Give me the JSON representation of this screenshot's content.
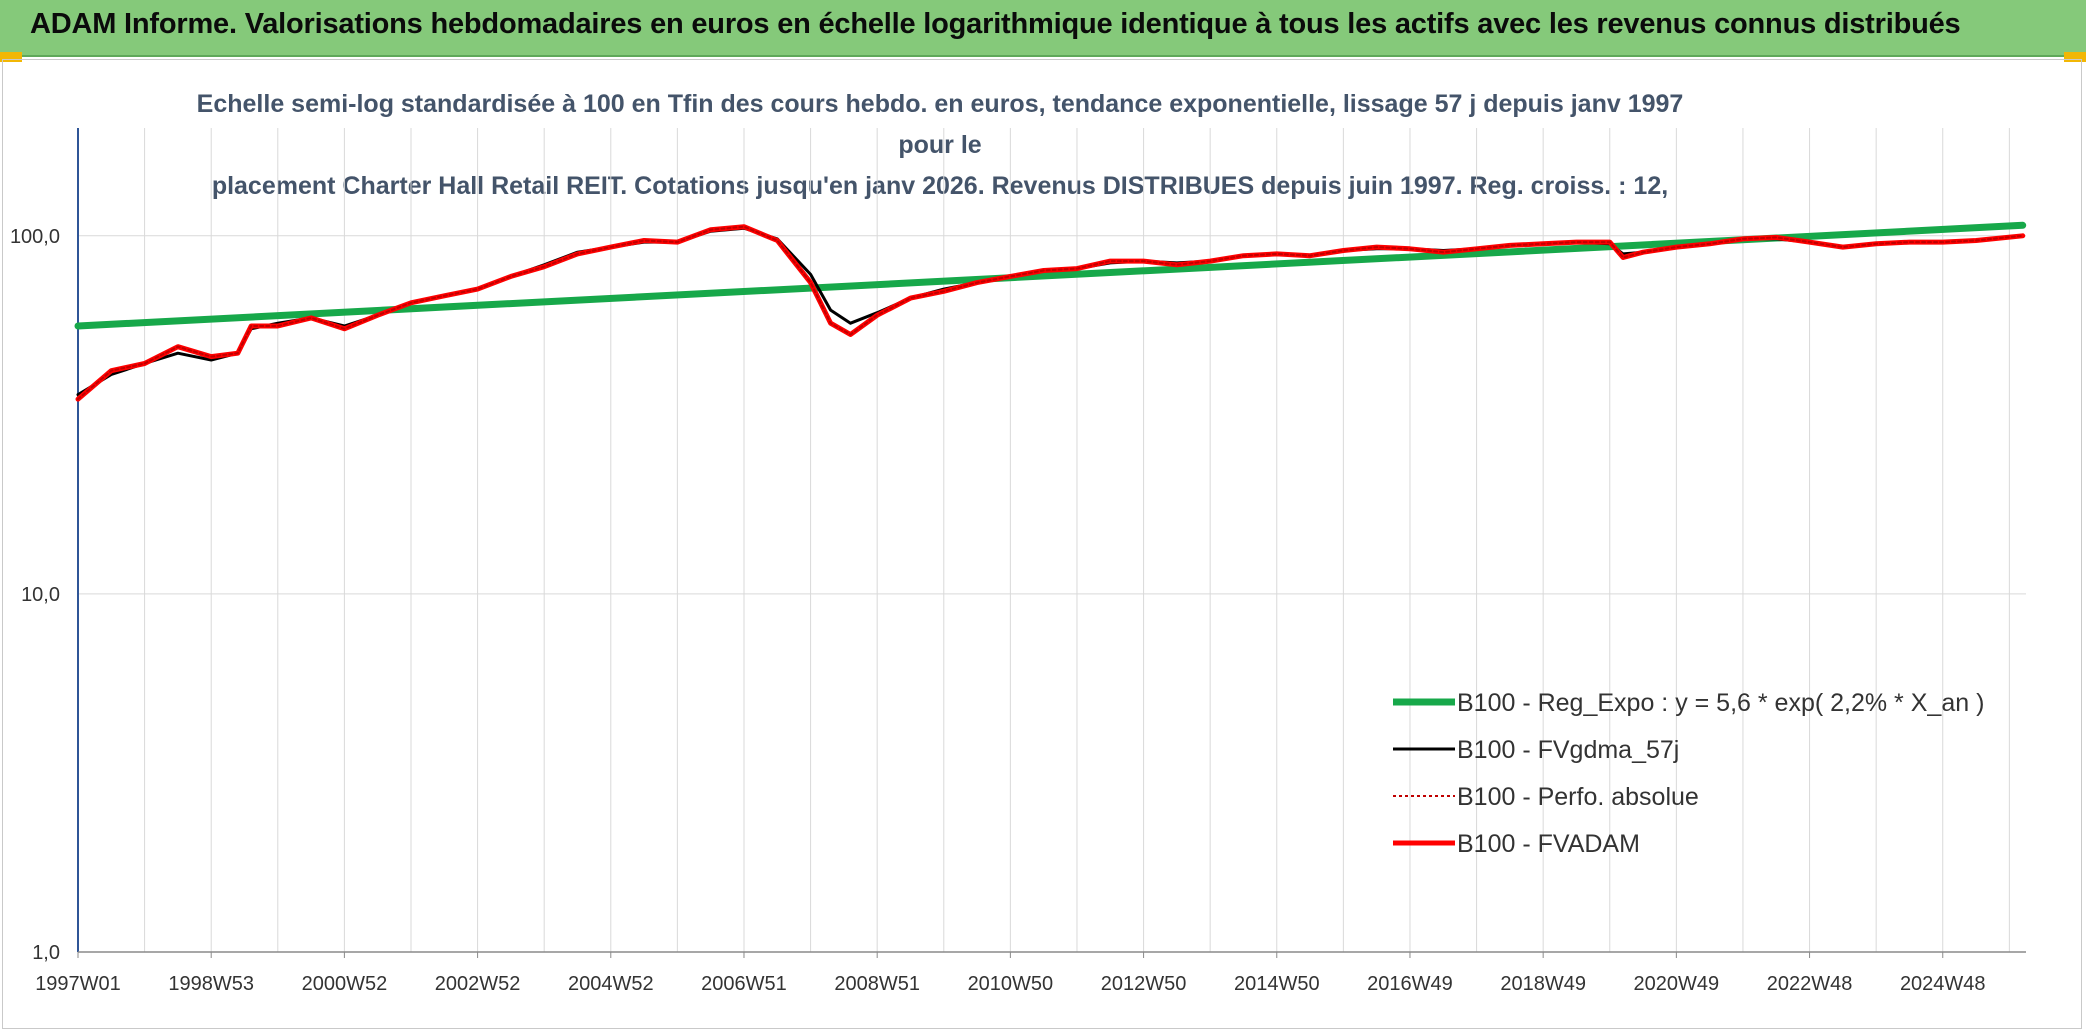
{
  "header": {
    "title": "ADAM Informe. Valorisations hebdomadaires en euros en échelle logarithmique identique à tous les actifs avec les revenus connus distribués"
  },
  "colors": {
    "banner": "#85c97a",
    "trend": "#17a84a",
    "fvadam": "#ff0000",
    "smooth": "#000000",
    "perfo": "#c00000",
    "grid": "#d9d9d9",
    "title_text": "#44546a"
  },
  "chart_data": {
    "type": "line",
    "title_line1": "Echelle semi-log standardisée à 100 en Tfin des cours hebdo. en euros, tendance exponentielle, lissage 57 j depuis janv 1997 pour le",
    "title_line2": "placement Charter Hall Retail REIT. Cotations jusqu'en janv 2026. Revenus DISTRIBUES depuis juin 1997. Reg. croiss. : 12,",
    "y_scale": "log",
    "ylim": [
      1,
      200
    ],
    "y_ticks": [
      {
        "value": 1,
        "label": "1,0"
      },
      {
        "value": 10,
        "label": "10,0"
      },
      {
        "value": 100,
        "label": "100,0"
      }
    ],
    "xlim": [
      1997.0,
      2026.25
    ],
    "x_ticks": [
      {
        "value": 1997.0,
        "label": "1997W01"
      },
      {
        "value": 1999.0,
        "label": "1998W53"
      },
      {
        "value": 2001.0,
        "label": "2000W52"
      },
      {
        "value": 2003.0,
        "label": "2002W52"
      },
      {
        "value": 2005.0,
        "label": "2004W52"
      },
      {
        "value": 2007.0,
        "label": "2006W51"
      },
      {
        "value": 2009.0,
        "label": "2008W51"
      },
      {
        "value": 2011.0,
        "label": "2010W50"
      },
      {
        "value": 2013.0,
        "label": "2012W50"
      },
      {
        "value": 2015.0,
        "label": "2014W50"
      },
      {
        "value": 2017.0,
        "label": "2016W49"
      },
      {
        "value": 2019.0,
        "label": "2018W49"
      },
      {
        "value": 2021.0,
        "label": "2020W49"
      },
      {
        "value": 2023.0,
        "label": "2022W48"
      },
      {
        "value": 2025.0,
        "label": "2024W48"
      }
    ],
    "legend_position": "bottom-right",
    "grid": "vertical",
    "series": [
      {
        "name": "B100 - Reg_Expo : y = 5,6 * exp( 2,2% *  X_an )",
        "style": "trend",
        "x": [
          1997.0,
          2026.2
        ],
        "y": [
          56,
          107
        ]
      },
      {
        "name": "B100 - FVgdma_57j",
        "style": "smooth",
        "x": [
          1997.0,
          1997.5,
          1998.0,
          1998.5,
          1999.0,
          1999.4,
          1999.6,
          2000.0,
          2000.5,
          2001.0,
          2001.5,
          2002.0,
          2002.5,
          2003.0,
          2003.5,
          2004.0,
          2004.5,
          2005.0,
          2005.5,
          2006.0,
          2006.5,
          2007.0,
          2007.5,
          2008.0,
          2008.3,
          2008.6,
          2009.0,
          2009.5,
          2010.0,
          2010.5,
          2011.0,
          2011.5,
          2012.0,
          2012.5,
          2013.0,
          2013.5,
          2014.0,
          2014.5,
          2015.0,
          2015.5,
          2016.0,
          2016.5,
          2017.0,
          2017.5,
          2018.0,
          2018.5,
          2019.0,
          2019.5,
          2020.0,
          2020.2,
          2020.5,
          2021.0,
          2021.5,
          2022.0,
          2022.5,
          2023.0,
          2023.5,
          2024.0,
          2024.5,
          2025.0,
          2025.5,
          2026.2
        ],
        "y": [
          36,
          41,
          44,
          47,
          45,
          47,
          55,
          57,
          59,
          56,
          60,
          65,
          68,
          71,
          77,
          83,
          90,
          93,
          96,
          96,
          103,
          105,
          98,
          78,
          62,
          57,
          61,
          67,
          71,
          74,
          77,
          80,
          81,
          84,
          85,
          84,
          85,
          88,
          89,
          88,
          91,
          92,
          92,
          91,
          92,
          94,
          95,
          96,
          95,
          89,
          90,
          93,
          95,
          98,
          98,
          96,
          93,
          95,
          96,
          96,
          97,
          100
        ]
      },
      {
        "name": "B100 - Perfo. absolue",
        "style": "perfo",
        "x": [
          1997.0,
          1997.5,
          1998.0,
          1998.5,
          1999.0,
          1999.4,
          1999.6,
          2000.0,
          2000.5,
          2001.0,
          2001.5,
          2002.0,
          2002.5,
          2003.0,
          2003.5,
          2004.0,
          2004.5,
          2005.0,
          2005.5,
          2006.0,
          2006.5,
          2007.0,
          2007.5,
          2008.0,
          2008.3,
          2008.6,
          2009.0,
          2009.5,
          2010.0,
          2010.5,
          2011.0,
          2011.5,
          2012.0,
          2012.5,
          2013.0,
          2013.5,
          2014.0,
          2014.5,
          2015.0,
          2015.5,
          2016.0,
          2016.5,
          2017.0,
          2017.5,
          2018.0,
          2018.5,
          2019.0,
          2019.5,
          2020.0,
          2020.2,
          2020.5,
          2021.0,
          2021.5,
          2022.0,
          2022.5,
          2023.0,
          2023.5,
          2024.0,
          2024.5,
          2025.0,
          2025.5,
          2026.2
        ],
        "y": [
          35,
          42,
          44,
          49,
          46,
          47,
          56,
          56,
          59,
          55,
          60,
          65,
          68,
          71,
          77,
          82,
          89,
          93,
          97,
          96,
          104,
          106,
          97,
          74,
          57,
          53,
          60,
          67,
          70,
          74,
          77,
          80,
          81,
          85,
          85,
          83,
          85,
          88,
          89,
          88,
          91,
          93,
          92,
          90,
          92,
          94,
          95,
          96,
          96,
          87,
          90,
          93,
          95,
          98,
          99,
          96,
          93,
          95,
          96,
          96,
          97,
          100
        ]
      },
      {
        "name": "B100 - FVADAM",
        "style": "fvadam",
        "x": [
          1997.0,
          1997.5,
          1998.0,
          1998.5,
          1999.0,
          1999.4,
          1999.6,
          2000.0,
          2000.5,
          2001.0,
          2001.5,
          2002.0,
          2002.5,
          2003.0,
          2003.5,
          2004.0,
          2004.5,
          2005.0,
          2005.5,
          2006.0,
          2006.5,
          2007.0,
          2007.5,
          2008.0,
          2008.3,
          2008.6,
          2009.0,
          2009.5,
          2010.0,
          2010.5,
          2011.0,
          2011.5,
          2012.0,
          2012.5,
          2013.0,
          2013.5,
          2014.0,
          2014.5,
          2015.0,
          2015.5,
          2016.0,
          2016.5,
          2017.0,
          2017.5,
          2018.0,
          2018.5,
          2019.0,
          2019.5,
          2020.0,
          2020.2,
          2020.5,
          2021.0,
          2021.5,
          2022.0,
          2022.5,
          2023.0,
          2023.5,
          2024.0,
          2024.5,
          2025.0,
          2025.5,
          2026.2
        ],
        "y": [
          35,
          42,
          44,
          49,
          46,
          47,
          56,
          56,
          59,
          55,
          60,
          65,
          68,
          71,
          77,
          82,
          89,
          93,
          97,
          96,
          104,
          106,
          97,
          74,
          57,
          53,
          60,
          67,
          70,
          74,
          77,
          80,
          81,
          85,
          85,
          83,
          85,
          88,
          89,
          88,
          91,
          93,
          92,
          90,
          92,
          94,
          95,
          96,
          96,
          87,
          90,
          93,
          95,
          98,
          99,
          96,
          93,
          95,
          96,
          96,
          97,
          100
        ]
      }
    ]
  }
}
